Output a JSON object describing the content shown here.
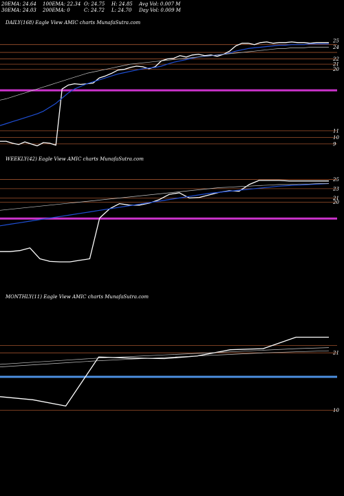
{
  "header": {
    "ema20": "20EMA: 24.64",
    "ema100": "100EMA: 22.34",
    "open": "O: 24.75",
    "high": "H: 24.85",
    "avg_vol": "Avg Vol: 0.007 M",
    "ema30": "30EMA: 24.03",
    "ema200": "200EMA: 0",
    "close": "C: 24.72",
    "low": "L: 24.70",
    "day_vol": "Day Vol: 0.009 M"
  },
  "colors": {
    "background": "#000000",
    "price": "#ffffff",
    "ema_fast": "#1f4fd6",
    "support_magenta": "#cc33cc",
    "support_blue": "#4d8fe0",
    "level_line": "#a0522d",
    "ema_slow": "#c8c8c8"
  },
  "chart_data": [
    {
      "type": "line",
      "title": "DAILY(168) Eagle   View  AMIC charts MunafaSutra.com",
      "ylim": [
        7.5,
        27
      ],
      "y_ticks": [
        {
          "label": "25",
          "value": 25
        },
        {
          "label": "24",
          "value": 24
        },
        {
          "label": "22",
          "value": 22.2
        },
        {
          "label": "21",
          "value": 21.4
        },
        {
          "label": "20",
          "value": 20.6
        },
        {
          "label": "11",
          "value": 11.2
        },
        {
          "label": "10",
          "value": 10.2
        },
        {
          "label": "9",
          "value": 9.2
        }
      ],
      "levels": [
        {
          "value": 24.4,
          "color": "level"
        },
        {
          "value": 23.2,
          "color": "level"
        },
        {
          "value": 22.2,
          "color": "level"
        },
        {
          "value": 21.4,
          "color": "level"
        },
        {
          "value": 20.6,
          "color": "level"
        },
        {
          "value": 17.4,
          "color": "magenta"
        },
        {
          "value": 11.2,
          "color": "level"
        },
        {
          "value": 10.2,
          "color": "level"
        },
        {
          "value": 9.2,
          "color": "level"
        }
      ],
      "series": [
        {
          "role": "price",
          "values": [
            9.6,
            9.6,
            9.3,
            9.1,
            9.5,
            9.2,
            8.9,
            9.4,
            9.3,
            9.0,
            17.6,
            18.2,
            18.4,
            18.3,
            18.4,
            18.5,
            19.3,
            19.6,
            20.0,
            20.5,
            20.6,
            20.9,
            21.1,
            21.0,
            20.7,
            21.0,
            21.9,
            22.2,
            22.3,
            22.7,
            22.5,
            22.8,
            22.9,
            22.7,
            22.8,
            22.6,
            22.9,
            23.4,
            24.2,
            24.6,
            24.6,
            24.4,
            24.7,
            24.8,
            24.6,
            24.7,
            24.7,
            24.8,
            24.7,
            24.7,
            24.6,
            24.7,
            24.7,
            24.7
          ]
        },
        {
          "role": "ema_fast",
          "values": [
            12.0,
            12.3,
            12.6,
            12.9,
            13.2,
            13.5,
            13.8,
            14.2,
            14.8,
            15.4,
            16.2,
            17.0,
            17.6,
            18.0,
            18.4,
            18.7,
            19.0,
            19.3,
            19.6,
            19.9,
            20.1,
            20.3,
            20.5,
            20.7,
            20.8,
            20.9,
            21.1,
            21.4,
            21.7,
            21.9,
            22.1,
            22.3,
            22.5,
            22.6,
            22.7,
            22.8,
            22.9,
            23.1,
            23.4,
            23.6,
            23.8,
            23.9,
            24.0,
            24.1,
            24.2,
            24.3,
            24.3,
            24.4,
            24.4,
            24.4,
            24.5,
            24.5,
            24.5,
            24.5
          ]
        },
        {
          "role": "ema_slow",
          "values": [
            15.9,
            16.1,
            16.4,
            16.7,
            17.0,
            17.3,
            17.6,
            17.9,
            18.2,
            18.5,
            18.8,
            19.1,
            19.4,
            19.7,
            20.0,
            20.2,
            20.4,
            20.6,
            20.8,
            21.0,
            21.2,
            21.4,
            21.5,
            21.6,
            21.7,
            21.8,
            21.9,
            22.0,
            22.1,
            22.2,
            22.3,
            22.4,
            22.5,
            22.6,
            22.7,
            22.8,
            22.9,
            23.0,
            23.1,
            23.2,
            23.3,
            23.4,
            23.5,
            23.6,
            23.7,
            23.8,
            23.8,
            23.9,
            23.9,
            23.9,
            24.0,
            24.0,
            24.0,
            24.0
          ]
        }
      ]
    },
    {
      "type": "line",
      "title": "WEEKLY(42) Eagle   View  AMIC charts MunafaSutra.com",
      "ylim": [
        3,
        28
      ],
      "y_ticks": [
        {
          "label": "25",
          "value": 25
        },
        {
          "label": "23",
          "value": 23.2
        },
        {
          "label": "21",
          "value": 21.4
        },
        {
          "label": "20",
          "value": 20.6
        }
      ],
      "levels": [
        {
          "value": 25,
          "color": "level"
        },
        {
          "value": 23.2,
          "color": "level"
        },
        {
          "value": 21.4,
          "color": "level"
        },
        {
          "value": 20.6,
          "color": "level"
        },
        {
          "value": 17.4,
          "color": "magenta"
        }
      ],
      "series": [
        {
          "role": "price",
          "values": [
            11.0,
            11.0,
            11.2,
            11.7,
            9.6,
            9.1,
            9.0,
            9.0,
            9.3,
            9.6,
            17.5,
            19.3,
            20.3,
            20.0,
            20.0,
            20.4,
            21.1,
            22.1,
            22.4,
            21.4,
            21.5,
            22.0,
            22.5,
            22.8,
            22.7,
            24.0,
            24.8,
            24.8,
            24.8,
            24.7,
            24.7,
            24.7,
            24.7,
            24.7
          ]
        },
        {
          "role": "ema_fast",
          "values": [
            16.0,
            16.3,
            16.6,
            16.9,
            17.2,
            17.5,
            17.8,
            18.1,
            18.4,
            18.7,
            19.0,
            19.3,
            19.6,
            19.9,
            20.2,
            20.5,
            20.8,
            21.1,
            21.4,
            21.7,
            22.0,
            22.3,
            22.5,
            22.7,
            22.9,
            23.1,
            23.3,
            23.5,
            23.7,
            23.8,
            23.9,
            24.0,
            24.1,
            24.2
          ]
        },
        {
          "role": "ema_slow",
          "values": [
            19.0,
            19.2,
            19.4,
            19.6,
            19.8,
            20.0,
            20.2,
            20.4,
            20.6,
            20.8,
            21.0,
            21.2,
            21.4,
            21.6,
            21.8,
            22.0,
            22.2,
            22.4,
            22.6,
            22.8,
            23.0,
            23.2,
            23.4,
            23.5,
            23.6,
            23.7,
            23.8,
            23.9,
            24.0,
            24.0,
            24.1,
            24.1,
            24.2,
            24.2
          ]
        }
      ]
    },
    {
      "type": "line",
      "title": "MONTHLY(11) Eagle   View  AMIC charts MunafaSutra.com",
      "ylim": [
        3,
        31
      ],
      "y_ticks": [
        {
          "label": "21",
          "value": 21.2
        },
        {
          "label": "10",
          "value": 10.2
        }
      ],
      "levels": [
        {
          "value": 22.6,
          "color": "level"
        },
        {
          "value": 21.2,
          "color": "level"
        },
        {
          "value": 16.6,
          "color": "blue"
        },
        {
          "value": 10.2,
          "color": "level"
        }
      ],
      "series": [
        {
          "role": "price",
          "values": [
            12.8,
            12.2,
            11.0,
            20.4,
            20.2,
            20.1,
            20.6,
            21.8,
            22.0,
            24.2,
            24.2
          ]
        },
        {
          "role": "ema_slow",
          "values": [
            19.0,
            19.4,
            19.8,
            20.2,
            20.5,
            20.8,
            21.1,
            21.4,
            21.7,
            22.0,
            22.2
          ]
        },
        {
          "role": "ema_slow",
          "values": [
            18.5,
            18.9,
            19.3,
            19.7,
            20.0,
            20.3,
            20.6,
            20.9,
            21.2,
            21.4,
            21.6
          ]
        }
      ]
    }
  ]
}
